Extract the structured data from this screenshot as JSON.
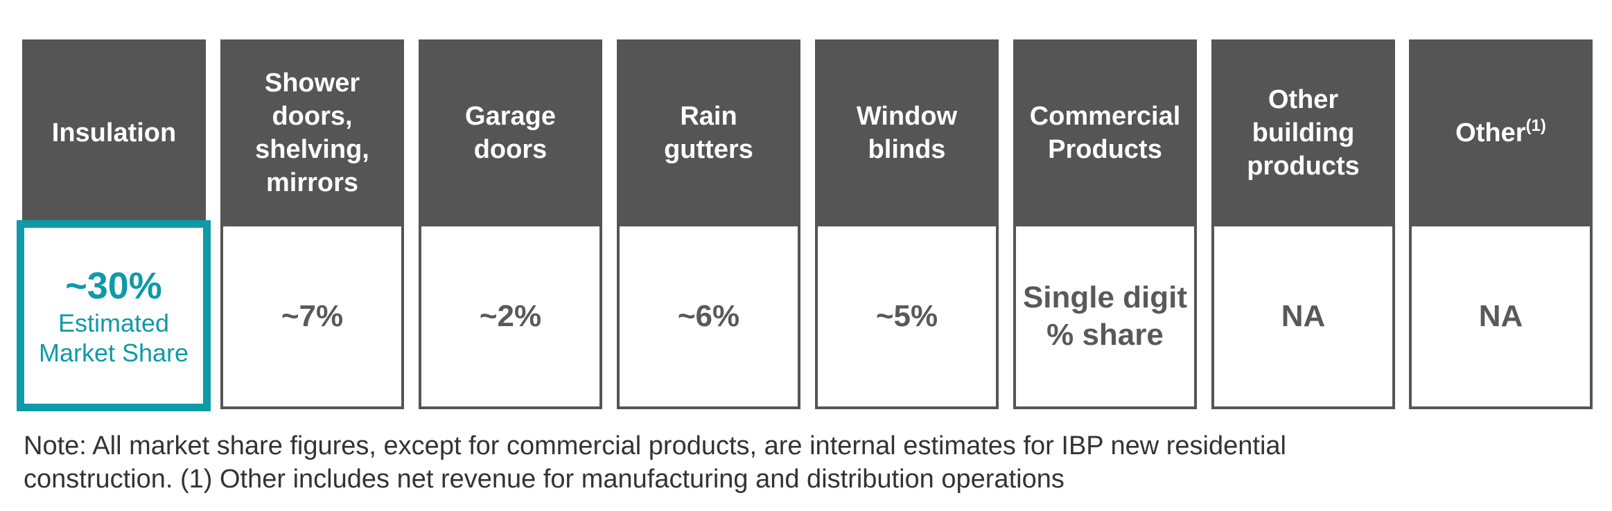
{
  "colors": {
    "header_bg": "#555555",
    "accent": "#0e9aa7",
    "value_text": "#595959",
    "border": "#555555"
  },
  "columns": [
    {
      "header": "Insulation",
      "value": "~30%",
      "sublabel": "Estimated\nMarket Share"
    },
    {
      "header": "Shower\ndoors,\nshelving,\nmirrors",
      "value": "~7%"
    },
    {
      "header": "Garage\ndoors",
      "value": "~2%"
    },
    {
      "header": "Rain\ngutters",
      "value": "~6%"
    },
    {
      "header": "Window\nblinds",
      "value": "~5%"
    },
    {
      "header": "Commercial\nProducts",
      "value": "Single digit\n% share"
    },
    {
      "header": "Other\nbuilding\nproducts",
      "value": "NA"
    },
    {
      "header": "Other",
      "header_sup": "(1)",
      "value": "NA"
    }
  ],
  "note": {
    "line1": "Note: All market share figures, except for commercial products, are internal estimates for IBP new residential",
    "line2": "construction. (1) Other includes net revenue for manufacturing and distribution operations"
  }
}
